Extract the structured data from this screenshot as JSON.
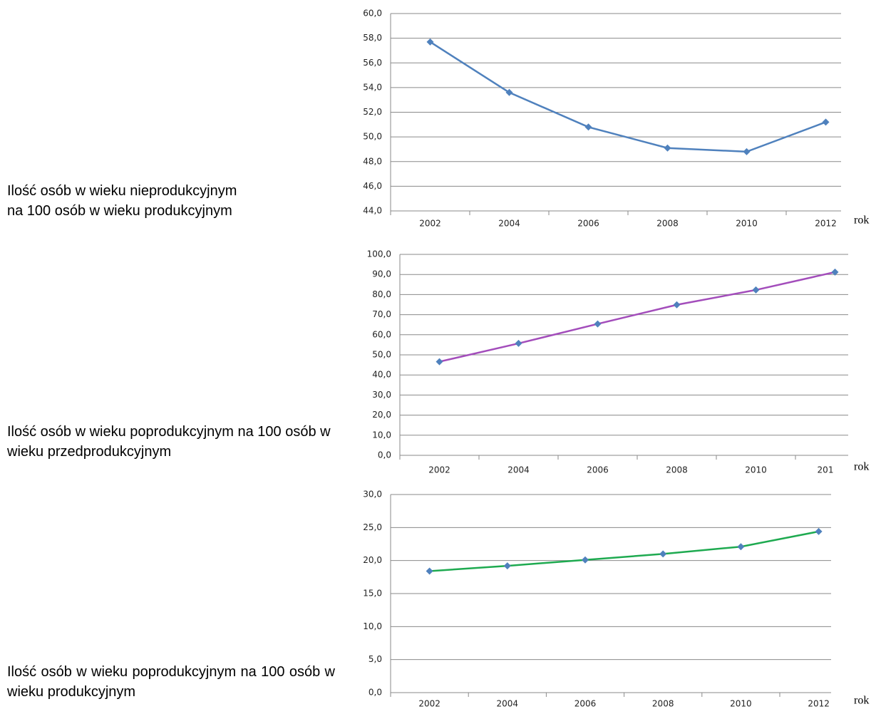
{
  "chart_data": [
    {
      "type": "line",
      "title": "Ilość osób w wieku nieprodukcyjnym na 100 osób w wieku produkcyjnym",
      "xlabel": "rok",
      "categories": [
        "2002",
        "2004",
        "2006",
        "2008",
        "2010",
        "2012"
      ],
      "series": [
        {
          "color": "#4f81bd",
          "marker_color": "#4f81bd",
          "values": [
            57.7,
            53.6,
            50.8,
            49.1,
            48.8,
            51.2
          ]
        }
      ],
      "ylim": [
        44,
        60
      ],
      "yticks": [
        {
          "value": 44,
          "label": "44,0"
        },
        {
          "value": 46,
          "label": "46,0"
        },
        {
          "value": 48,
          "label": "48,0"
        },
        {
          "value": 50,
          "label": "50,0"
        },
        {
          "value": 52,
          "label": "52,0"
        },
        {
          "value": 54,
          "label": "54,0"
        },
        {
          "value": 56,
          "label": "56,0"
        },
        {
          "value": 58,
          "label": "58,0"
        },
        {
          "value": 60,
          "label": "60,0"
        }
      ],
      "grid": true
    },
    {
      "type": "line",
      "title": "Ilość osób w wieku poprodukcyjnym na 100 osób w wieku przedprodukcyjnym",
      "xlabel": "rok",
      "categories": [
        "2002",
        "2004",
        "2006",
        "2008",
        "2010",
        "201"
      ],
      "series": [
        {
          "color": "#a34dbb",
          "marker_color": "#4f81bd",
          "values": [
            46.6,
            55.7,
            65.4,
            74.9,
            82.3,
            91.2
          ]
        }
      ],
      "ylim": [
        0,
        100
      ],
      "yticks": [
        {
          "value": 0,
          "label": "0,0"
        },
        {
          "value": 10,
          "label": "10,0"
        },
        {
          "value": 20,
          "label": "20,0"
        },
        {
          "value": 30,
          "label": "30,0"
        },
        {
          "value": 40,
          "label": "40,0"
        },
        {
          "value": 50,
          "label": "50,0"
        },
        {
          "value": 60,
          "label": "60,0"
        },
        {
          "value": 70,
          "label": "70,0"
        },
        {
          "value": 80,
          "label": "80,0"
        },
        {
          "value": 90,
          "label": "90,0"
        },
        {
          "value": 100,
          "label": "100,0"
        }
      ],
      "grid": true
    },
    {
      "type": "line",
      "title": "Ilość osób w wieku poprodukcyjnym na 100 osób w wieku produkcyjnym",
      "xlabel": "rok",
      "categories": [
        "2002",
        "2004",
        "2006",
        "2008",
        "2010",
        "2012"
      ],
      "series": [
        {
          "color": "#1eaa50",
          "marker_color": "#4f81bd",
          "values": [
            18.4,
            19.2,
            20.1,
            21.0,
            22.1,
            24.4
          ]
        }
      ],
      "ylim": [
        0,
        30
      ],
      "yticks": [
        {
          "value": 0,
          "label": "0,0"
        },
        {
          "value": 5,
          "label": "5,0"
        },
        {
          "value": 10,
          "label": "10,0"
        },
        {
          "value": 15,
          "label": "15,0"
        },
        {
          "value": 20,
          "label": "20,0"
        },
        {
          "value": 25,
          "label": "25,0"
        },
        {
          "value": 30,
          "label": "30,0"
        }
      ],
      "grid": true
    }
  ]
}
